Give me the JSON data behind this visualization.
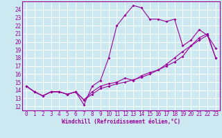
{
  "xlabel": "Windchill (Refroidissement éolien,°C)",
  "xlim": [
    -0.5,
    23.5
  ],
  "ylim": [
    11.5,
    25.0
  ],
  "yticks": [
    12,
    13,
    14,
    15,
    16,
    17,
    18,
    19,
    20,
    21,
    22,
    23,
    24
  ],
  "xticks": [
    0,
    1,
    2,
    3,
    4,
    5,
    6,
    7,
    8,
    9,
    10,
    11,
    12,
    13,
    14,
    15,
    16,
    17,
    18,
    19,
    20,
    21,
    22,
    23
  ],
  "bg_color": "#cce8f0",
  "line_color": "#990099",
  "grid_color": "#ffffff",
  "line1_y": [
    14.5,
    13.8,
    13.3,
    13.8,
    13.8,
    13.5,
    13.8,
    12.2,
    14.5,
    15.2,
    18.0,
    22.0,
    23.3,
    24.5,
    24.2,
    22.8,
    22.8,
    22.5,
    22.8,
    19.5,
    20.2,
    21.5,
    20.8,
    19.2
  ],
  "line2_y": [
    14.5,
    13.8,
    13.3,
    13.8,
    13.8,
    13.5,
    13.8,
    12.8,
    13.8,
    14.5,
    14.8,
    15.0,
    15.5,
    15.2,
    15.8,
    16.2,
    16.5,
    17.0,
    17.5,
    18.2,
    19.5,
    20.5,
    21.0,
    18.0
  ],
  "line3_y": [
    14.5,
    13.8,
    13.3,
    13.8,
    13.8,
    13.5,
    13.8,
    12.8,
    13.5,
    14.2,
    14.5,
    14.8,
    15.0,
    15.3,
    15.6,
    16.0,
    16.5,
    17.2,
    18.0,
    18.8,
    19.5,
    20.2,
    20.8,
    18.0
  ],
  "tick_fontsize": 5.5,
  "xlabel_fontsize": 5.5,
  "marker_size": 2.0,
  "linewidth": 0.8
}
